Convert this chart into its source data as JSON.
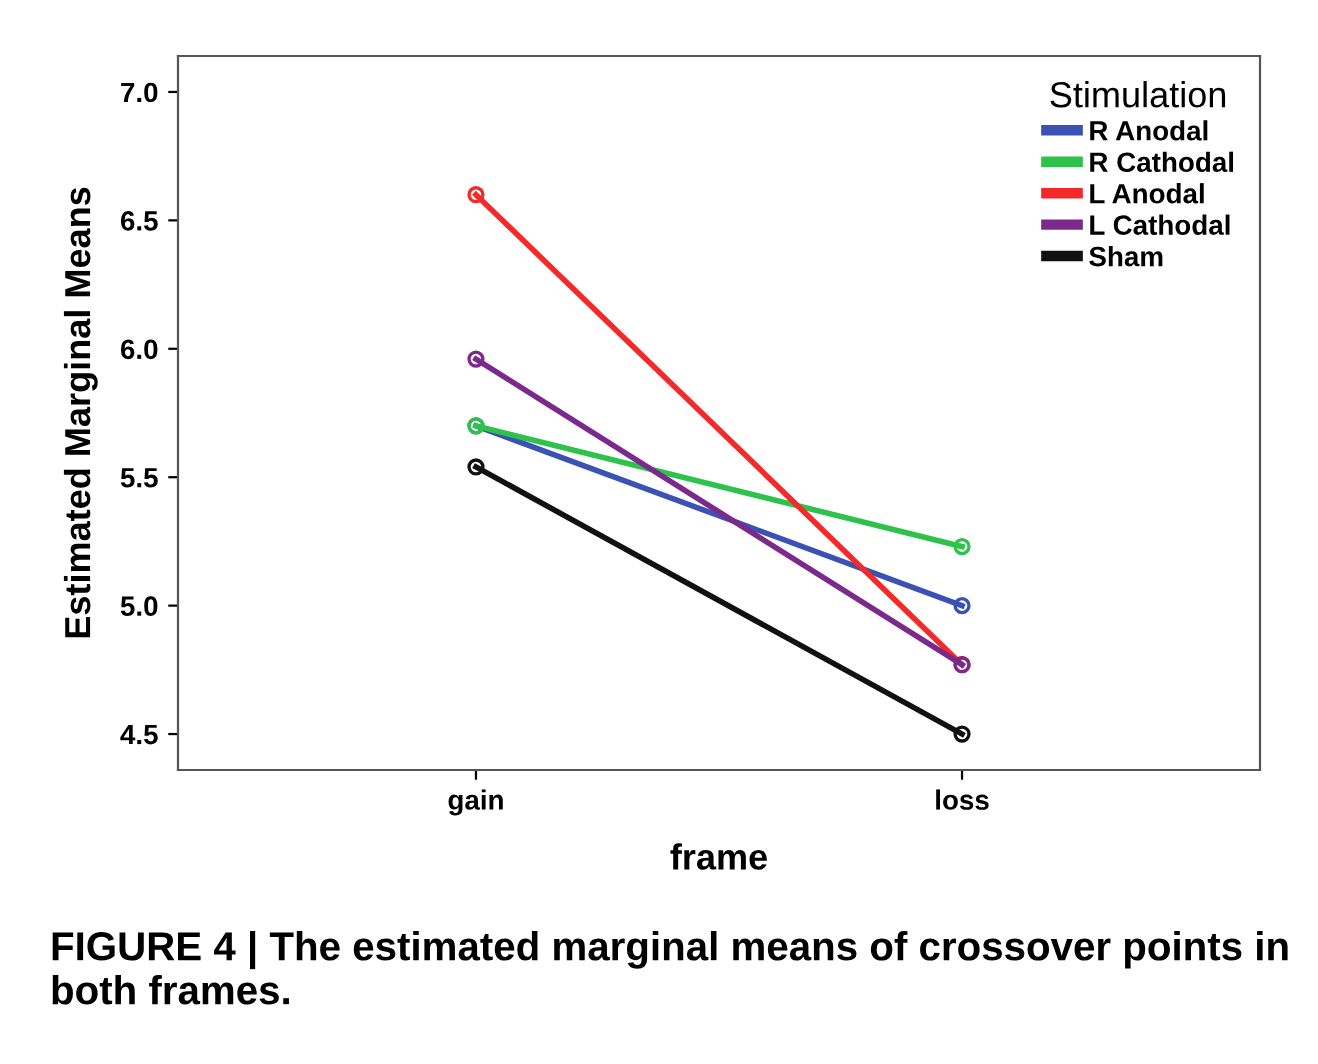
{
  "chart_data": {
    "type": "line",
    "xlabel": "frame",
    "ylabel": "Estimated Marginal Means",
    "legend_title": "Stimulation",
    "categories": [
      "gain",
      "loss"
    ],
    "series": [
      {
        "name": "R Anodal",
        "color": "#3a52b4",
        "values": [
          5.7,
          5.0
        ]
      },
      {
        "name": "R Cathodal",
        "color": "#2ec24a",
        "values": [
          5.7,
          5.23
        ]
      },
      {
        "name": "L Anodal",
        "color": "#f42a2a",
        "values": [
          6.6,
          4.77
        ]
      },
      {
        "name": "L Cathodal",
        "color": "#7b2a8c",
        "values": [
          5.96,
          4.77
        ]
      },
      {
        "name": "Sham",
        "color": "#111111",
        "values": [
          5.54,
          4.5
        ]
      }
    ],
    "ylim": [
      4.36,
      7.14
    ],
    "yticks": [
      {
        "value": 4.5,
        "label": "4.5"
      },
      {
        "value": 5.0,
        "label": "5.0"
      },
      {
        "value": 5.5,
        "label": "5.5"
      },
      {
        "value": 6.0,
        "label": "6.0"
      },
      {
        "value": 6.5,
        "label": "6.5"
      },
      {
        "value": 7.0,
        "label": "7.0"
      }
    ],
    "marker": "circle",
    "line_style": "solid",
    "grid": false,
    "legend": "top right",
    "annotations": [
      "FIGURE 4 | The estimated marginal means of crossover points in both frames."
    ]
  }
}
